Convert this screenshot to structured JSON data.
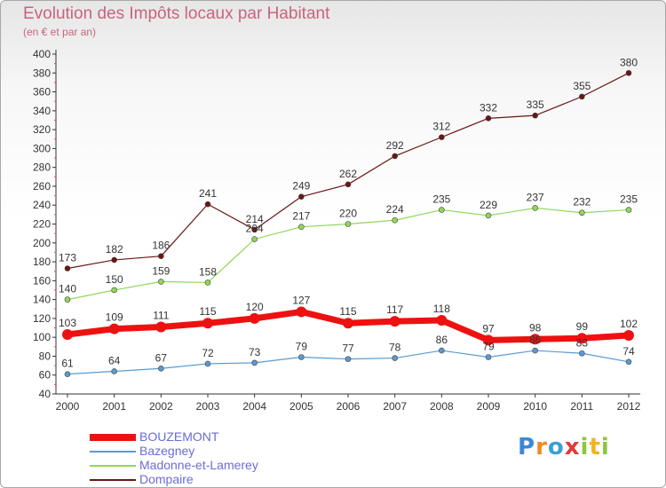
{
  "title": "Evolution des Impôts locaux par Habitant",
  "subtitle": "(en € et par an)",
  "logo_text": "Proxiti",
  "chart_data": {
    "type": "line",
    "title": "Evolution des Impôts locaux par Habitant",
    "subtitle": "(en € et par an)",
    "xlabel": "",
    "ylabel": "",
    "ylim": [
      40,
      400
    ],
    "y_ticks": [
      40,
      60,
      80,
      100,
      120,
      140,
      160,
      180,
      200,
      220,
      240,
      260,
      280,
      300,
      320,
      340,
      360,
      380,
      400
    ],
    "grid": false,
    "legend_position": "bottom-left",
    "x": [
      "2000",
      "2001",
      "2002",
      "2003",
      "2004",
      "2005",
      "2006",
      "2007",
      "2008",
      "2009",
      "2010",
      "2011",
      "2012"
    ],
    "series": [
      {
        "name": "Dompaire",
        "color": "#6b1515",
        "values": [
          173,
          182,
          186,
          241,
          214,
          249,
          262,
          292,
          312,
          332,
          335,
          355,
          380
        ]
      },
      {
        "name": "Madonne-et-Lamerey",
        "color": "#8fd85a",
        "values": [
          140,
          150,
          159,
          158,
          204,
          217,
          220,
          224,
          235,
          229,
          237,
          232,
          235
        ]
      },
      {
        "name": "BOUZEMONT",
        "color": "#ee1111",
        "values": [
          103,
          109,
          111,
          115,
          120,
          127,
          115,
          117,
          118,
          97,
          98,
          99,
          102
        ]
      },
      {
        "name": "Bazegney",
        "color": "#5a9ad0",
        "values": [
          61,
          64,
          67,
          72,
          73,
          79,
          77,
          78,
          86,
          79,
          86,
          83,
          74
        ]
      }
    ],
    "data_labels": {
      "Dompaire": [
        "173",
        "182",
        "186",
        "241",
        "214",
        "249",
        "262",
        "292",
        "312",
        "332",
        "335",
        "355",
        "380"
      ],
      "Madonne-et-Lamerey": [
        "140",
        "150",
        "159",
        "158",
        "204",
        "217",
        "220",
        "224",
        "235",
        "229",
        "237",
        "232",
        "235"
      ],
      "BOUZEMONT": [
        "103",
        "109",
        "111",
        "115",
        "120",
        "127",
        "115",
        "117",
        "118",
        "97",
        "98",
        "99",
        "102"
      ],
      "Bazegney": [
        "61",
        "64",
        "67",
        "72",
        "73",
        "79",
        "77",
        "78",
        "86",
        "79",
        "86",
        "83",
        "74"
      ]
    }
  },
  "legend": [
    {
      "name": "BOUZEMONT",
      "color": "#ee1111"
    },
    {
      "name": "Bazegney",
      "color": "#5a9ad0"
    },
    {
      "name": "Madonne-et-Lamerey",
      "color": "#8fd85a"
    },
    {
      "name": "Dompaire",
      "color": "#6b1515"
    }
  ]
}
